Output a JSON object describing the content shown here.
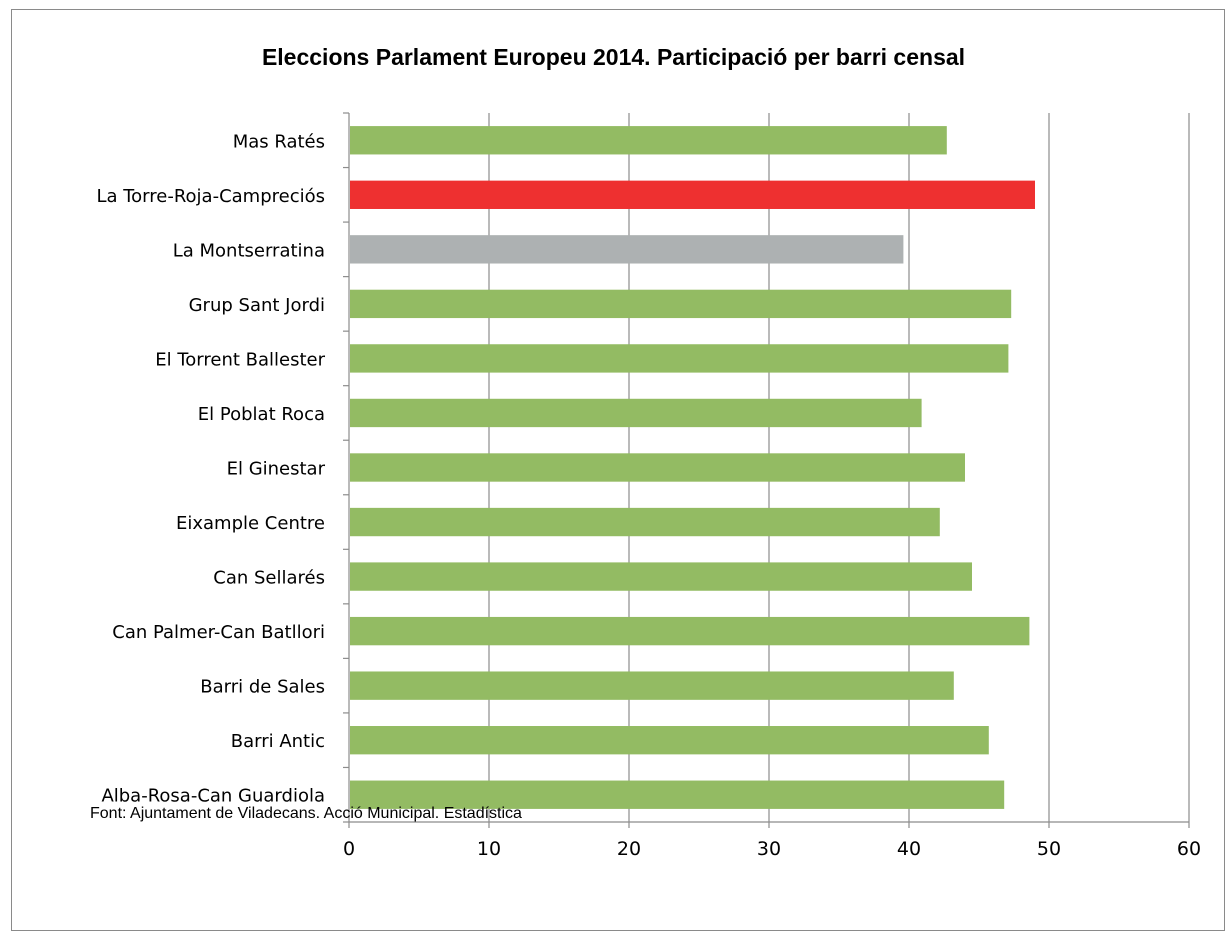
{
  "chart_data": {
    "type": "bar",
    "orientation": "horizontal",
    "title": "Eleccions Parlament Europeu 2014. Participació per barri censal",
    "source": "Font: Ajuntament de Viladecans. Acció Municipal. Estadística",
    "categories": [
      "Mas Ratés",
      "La Torre-Roja-Campreciós",
      "La Montserratina",
      "Grup Sant Jordi",
      "El Torrent Ballester",
      "El Poblat Roca",
      "El Ginestar",
      "Eixample Centre",
      "Can Sellarés",
      "Can Palmer-Can Batllori",
      "Barri de Sales",
      "Barri Antic",
      "Alba-Rosa-Can Guardiola"
    ],
    "values": [
      42.7,
      49.0,
      39.6,
      47.3,
      47.1,
      40.9,
      44.0,
      42.2,
      44.5,
      48.6,
      43.2,
      45.7,
      46.8
    ],
    "bar_colors": [
      "#93bb63",
      "#ee3030",
      "#adb1b2",
      "#93bb63",
      "#93bb63",
      "#93bb63",
      "#93bb63",
      "#93bb63",
      "#93bb63",
      "#93bb63",
      "#93bb63",
      "#93bb63",
      "#93bb63"
    ],
    "xlim": [
      0,
      60
    ],
    "xticks": [
      0,
      10,
      20,
      30,
      40,
      50,
      60
    ],
    "grid": true
  }
}
